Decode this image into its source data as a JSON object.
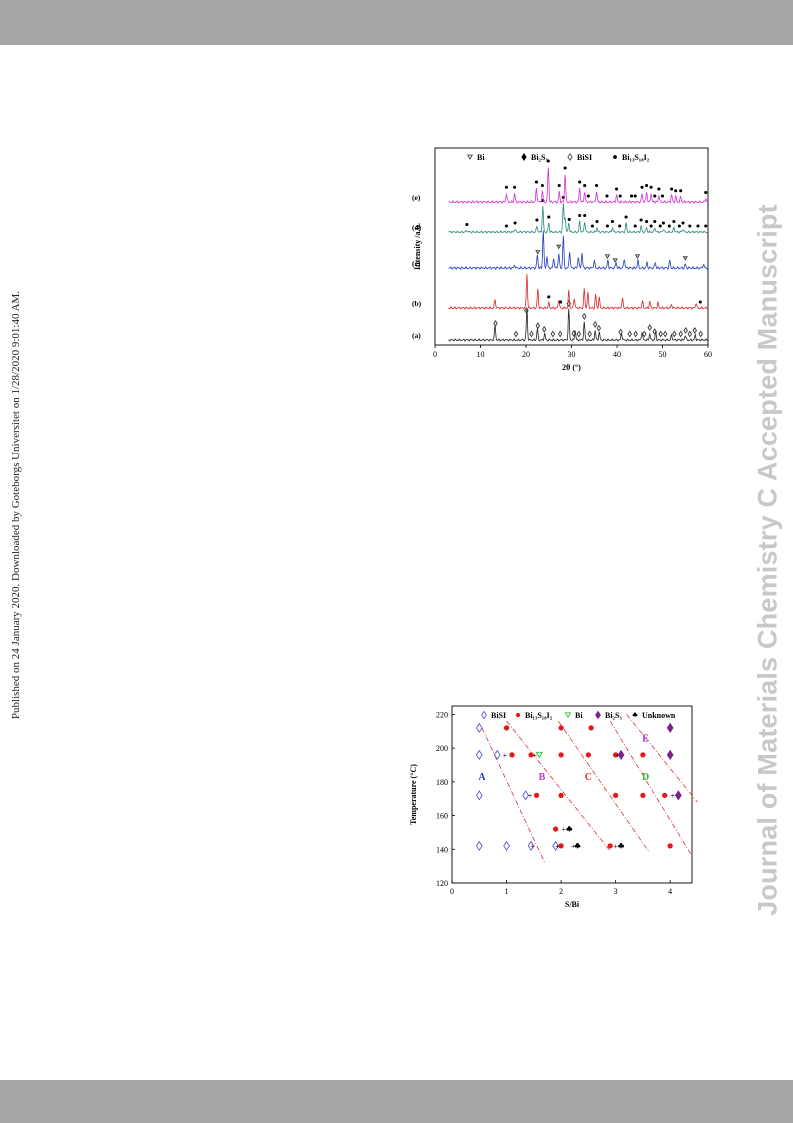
{
  "page": {
    "side_note": "Published on 24 January 2020. Downloaded by Goteborgs Universitet on 1/28/2020 9:01:40 AM.",
    "watermark": "Journal of Materials Chemistry C Accepted Manuscript"
  },
  "chart_data": [
    {
      "type": "line",
      "title": "",
      "xlabel": "2θ (°)",
      "ylabel": "Intensity /a.u.",
      "xlim": [
        0,
        60
      ],
      "x_ticks": [
        "0",
        "10",
        "20",
        "30",
        "40",
        "50",
        "60"
      ],
      "legend": [
        "Bi",
        "Bi₂S₃",
        "BiSI",
        "Bi₁₃S₁₈I₂"
      ],
      "legend_placement": "top",
      "series": [
        {
          "name": "(a)",
          "color": "#222222",
          "peaks": [
            [
              13.2,
              0.45
            ],
            [
              20.2,
              1.0
            ],
            [
              22.5,
              0.35
            ],
            [
              24.1,
              0.2
            ],
            [
              29.4,
              0.95
            ],
            [
              30.8,
              0.3
            ],
            [
              32.8,
              0.55
            ],
            [
              35.2,
              0.3
            ],
            [
              36.1,
              0.25
            ],
            [
              41.0,
              0.2
            ],
            [
              45.5,
              0.25
            ],
            [
              47.2,
              0.2
            ],
            [
              48.5,
              0.25
            ],
            [
              52.0,
              0.15
            ],
            [
              55.0,
              0.15
            ],
            [
              57.2,
              0.15
            ]
          ],
          "markers": [
            {
              "sym": "diamond",
              "x": [
                13.3,
                17.8,
                20.1,
                21.2,
                22.6,
                24.0,
                25.9,
                27.5,
                29.4,
                30.5,
                31.6,
                32.8,
                34.0,
                35.2,
                36.0,
                40.8,
                42.8,
                44.1,
                46.0,
                47.2,
                48.3,
                49.6,
                50.6,
                52.6,
                54.0,
                55.1,
                56.0,
                57.1,
                58.4
              ]
            }
          ]
        },
        {
          "name": "(b)",
          "color": "#d62728",
          "peaks": [
            [
              13.2,
              0.25
            ],
            [
              20.2,
              1.0
            ],
            [
              22.6,
              0.55
            ],
            [
              25.0,
              0.15
            ],
            [
              27.2,
              0.25
            ],
            [
              29.4,
              0.5
            ],
            [
              30.6,
              0.3
            ],
            [
              32.8,
              0.55
            ],
            [
              33.6,
              0.45
            ],
            [
              35.3,
              0.4
            ],
            [
              36.1,
              0.3
            ],
            [
              41.2,
              0.3
            ],
            [
              45.6,
              0.2
            ],
            [
              47.2,
              0.2
            ],
            [
              49.0,
              0.15
            ],
            [
              52.0,
              0.1
            ],
            [
              57.4,
              0.15
            ]
          ],
          "markers": [
            {
              "sym": "dot",
              "x": [
                25.0,
                27.6,
                58.3
              ]
            }
          ]
        },
        {
          "name": "(c)",
          "color": "#1f3fbf",
          "peaks": [
            [
              17.5,
              0.08
            ],
            [
              22.5,
              0.35
            ],
            [
              23.8,
              1.0
            ],
            [
              24.6,
              0.3
            ],
            [
              26.1,
              0.25
            ],
            [
              27.2,
              0.4
            ],
            [
              28.2,
              0.85
            ],
            [
              29.6,
              0.45
            ],
            [
              31.5,
              0.3
            ],
            [
              32.3,
              0.4
            ],
            [
              35.0,
              0.2
            ],
            [
              38.0,
              0.2
            ],
            [
              39.8,
              0.15
            ],
            [
              41.6,
              0.25
            ],
            [
              44.6,
              0.2
            ],
            [
              46.6,
              0.15
            ],
            [
              48.4,
              0.15
            ],
            [
              51.6,
              0.2
            ],
            [
              55.0,
              0.1
            ],
            [
              59.0,
              0.1
            ]
          ],
          "markers": [
            {
              "sym": "tri",
              "x": [
                22.6,
                27.2,
                37.9,
                39.6,
                44.5,
                55.0
              ]
            }
          ]
        },
        {
          "name": "(d)",
          "color": "#2a8a80",
          "peaks": [
            [
              7.0,
              0.05
            ],
            [
              17.6,
              0.1
            ],
            [
              22.4,
              0.2
            ],
            [
              23.7,
              0.85
            ],
            [
              25.0,
              0.3
            ],
            [
              28.2,
              0.95
            ],
            [
              28.6,
              0.5
            ],
            [
              29.4,
              0.3
            ],
            [
              31.8,
              0.35
            ],
            [
              32.9,
              0.35
            ],
            [
              35.6,
              0.15
            ],
            [
              39.0,
              0.15
            ],
            [
              42.0,
              0.3
            ],
            [
              45.3,
              0.2
            ],
            [
              46.5,
              0.15
            ],
            [
              48.3,
              0.15
            ],
            [
              50.2,
              0.1
            ],
            [
              52.5,
              0.15
            ],
            [
              54.5,
              0.1
            ]
          ],
          "markers": [
            {
              "sym": "dot",
              "x": [
                7.0,
                15.7,
                17.6,
                22.4,
                23.7,
                25.0,
                28.2,
                29.5,
                31.8,
                32.9,
                34.6,
                35.6,
                37.9,
                39.0,
                40.6,
                42.0,
                44.0,
                45.3,
                46.5,
                47.5,
                48.3,
                49.5,
                50.2,
                51.5,
                52.5,
                53.7,
                54.5,
                56.0,
                57.8,
                59.5
              ]
            }
          ]
        },
        {
          "name": "(e)",
          "color": "#d22fd2",
          "peaks": [
            [
              15.7,
              0.25
            ],
            [
              17.5,
              0.25
            ],
            [
              22.3,
              0.4
            ],
            [
              23.6,
              0.3
            ],
            [
              24.9,
              1.0
            ],
            [
              27.3,
              0.3
            ],
            [
              28.6,
              0.8
            ],
            [
              31.8,
              0.4
            ],
            [
              32.9,
              0.3
            ],
            [
              35.5,
              0.3
            ],
            [
              39.9,
              0.2
            ],
            [
              45.5,
              0.25
            ],
            [
              46.5,
              0.3
            ],
            [
              47.5,
              0.25
            ],
            [
              49.2,
              0.2
            ],
            [
              52.0,
              0.2
            ],
            [
              52.9,
              0.15
            ],
            [
              54.0,
              0.15
            ],
            [
              59.5,
              0.1
            ]
          ],
          "markers": [
            {
              "sym": "dot",
              "x": [
                15.7,
                17.5,
                22.3,
                23.6,
                24.9,
                27.3,
                28.6,
                31.8,
                32.9,
                33.7,
                35.5,
                37.8,
                39.9,
                40.7,
                43.2,
                44.0,
                45.5,
                46.5,
                47.5,
                48.3,
                49.2,
                50.0,
                52.0,
                52.9,
                54.0,
                59.5
              ]
            }
          ]
        }
      ]
    },
    {
      "type": "scatter",
      "title": "",
      "xlabel": "S/Bi",
      "ylabel": "Temperature (°C)",
      "xlim": [
        0,
        4.4
      ],
      "ylim": [
        120,
        225
      ],
      "x_ticks": [
        "0",
        "1",
        "2",
        "3",
        "4"
      ],
      "y_ticks": [
        "120",
        "140",
        "160",
        "180",
        "200",
        "220"
      ],
      "legend": [
        {
          "label": "BiSI",
          "sym": "diamond",
          "color": "#5a5ad0"
        },
        {
          "label": "Bi₁₃S₁₈I₂",
          "sym": "dot",
          "color": "#e81818"
        },
        {
          "label": "Bi",
          "sym": "tri",
          "color": "#30c030"
        },
        {
          "label": "Bi₂S₃",
          "sym": "pdiamond",
          "color": "#7a2090"
        },
        {
          "label": "Unknown",
          "sym": "club",
          "color": "#000000"
        }
      ],
      "legend_placement": "top",
      "regions": [
        {
          "label": "A",
          "x": 0.55,
          "y": 181,
          "color": "#2233bb"
        },
        {
          "label": "B",
          "x": 1.65,
          "y": 181,
          "color": "#cc33cc"
        },
        {
          "label": "C",
          "x": 2.5,
          "y": 181,
          "color": "#e03030"
        },
        {
          "label": "D",
          "x": 3.55,
          "y": 181,
          "color": "#30c030"
        },
        {
          "label": "E",
          "x": 3.55,
          "y": 204,
          "color": "#9933cc"
        }
      ],
      "boundaries": [
        {
          "x1": 0.55,
          "y1": 212,
          "x2": 1.7,
          "y2": 132
        },
        {
          "x1": 1.0,
          "y1": 216,
          "x2": 2.9,
          "y2": 139
        },
        {
          "x1": 1.95,
          "y1": 216,
          "x2": 3.6,
          "y2": 139
        },
        {
          "x1": 2.9,
          "y1": 216,
          "x2": 4.4,
          "y2": 136
        },
        {
          "x1": 3.2,
          "y1": 220,
          "x2": 4.5,
          "y2": 168
        }
      ],
      "points": [
        {
          "sym": "diamond",
          "x": 0.5,
          "y": 212
        },
        {
          "sym": "diamond",
          "x": 0.5,
          "y": 196
        },
        {
          "sym": "diamond",
          "x": 0.5,
          "y": 172
        },
        {
          "sym": "diamond",
          "x": 0.5,
          "y": 142
        },
        {
          "sym": "diamond",
          "x": 0.83,
          "y": 196
        },
        {
          "sym": "diamond",
          "x": 1.0,
          "y": 142
        },
        {
          "sym": "diamond",
          "x": 1.35,
          "y": 172
        },
        {
          "sym": "diamond",
          "x": 1.45,
          "y": 142
        },
        {
          "sym": "diamond",
          "x": 1.9,
          "y": 142
        },
        {
          "sym": "dot",
          "x": 1.0,
          "y": 212
        },
        {
          "sym": "dot",
          "x": 1.1,
          "y": 196
        },
        {
          "sym": "dot",
          "x": 1.45,
          "y": 196
        },
        {
          "sym": "dot",
          "x": 1.55,
          "y": 172
        },
        {
          "sym": "dot",
          "x": 1.9,
          "y": 152
        },
        {
          "sym": "dot",
          "x": 2.0,
          "y": 142
        },
        {
          "sym": "dot",
          "x": 2.0,
          "y": 212
        },
        {
          "sym": "dot",
          "x": 2.0,
          "y": 196
        },
        {
          "sym": "dot",
          "x": 2.0,
          "y": 172
        },
        {
          "sym": "dot",
          "x": 2.5,
          "y": 196
        },
        {
          "sym": "dot",
          "x": 2.55,
          "y": 212
        },
        {
          "sym": "dot",
          "x": 3.0,
          "y": 196
        },
        {
          "sym": "dot",
          "x": 3.0,
          "y": 172
        },
        {
          "sym": "dot",
          "x": 2.9,
          "y": 142
        },
        {
          "sym": "dot",
          "x": 3.5,
          "y": 196
        },
        {
          "sym": "dot",
          "x": 3.5,
          "y": 172
        },
        {
          "sym": "dot",
          "x": 3.9,
          "y": 172
        },
        {
          "sym": "dot",
          "x": 4.0,
          "y": 142
        },
        {
          "sym": "tri",
          "x": 1.6,
          "y": 196
        },
        {
          "sym": "pdiamond",
          "x": 3.1,
          "y": 196
        },
        {
          "sym": "pdiamond",
          "x": 4.0,
          "y": 212
        },
        {
          "sym": "pdiamond",
          "x": 4.0,
          "y": 196
        },
        {
          "sym": "pdiamond",
          "x": 4.15,
          "y": 172
        },
        {
          "sym": "club",
          "x": 2.15,
          "y": 152
        },
        {
          "sym": "club",
          "x": 2.3,
          "y": 142
        },
        {
          "sym": "club",
          "x": 3.1,
          "y": 142
        }
      ],
      "plus_signs": [
        {
          "x": 0.97,
          "y": 196
        },
        {
          "x": 1.52,
          "y": 196
        },
        {
          "x": 1.43,
          "y": 172
        },
        {
          "x": 1.48,
          "y": 142
        },
        {
          "x": 1.93,
          "y": 142
        },
        {
          "x": 2.05,
          "y": 152
        },
        {
          "x": 2.22,
          "y": 142
        },
        {
          "x": 3.03,
          "y": 196
        },
        {
          "x": 3.0,
          "y": 142
        },
        {
          "x": 4.05,
          "y": 172
        }
      ]
    }
  ]
}
